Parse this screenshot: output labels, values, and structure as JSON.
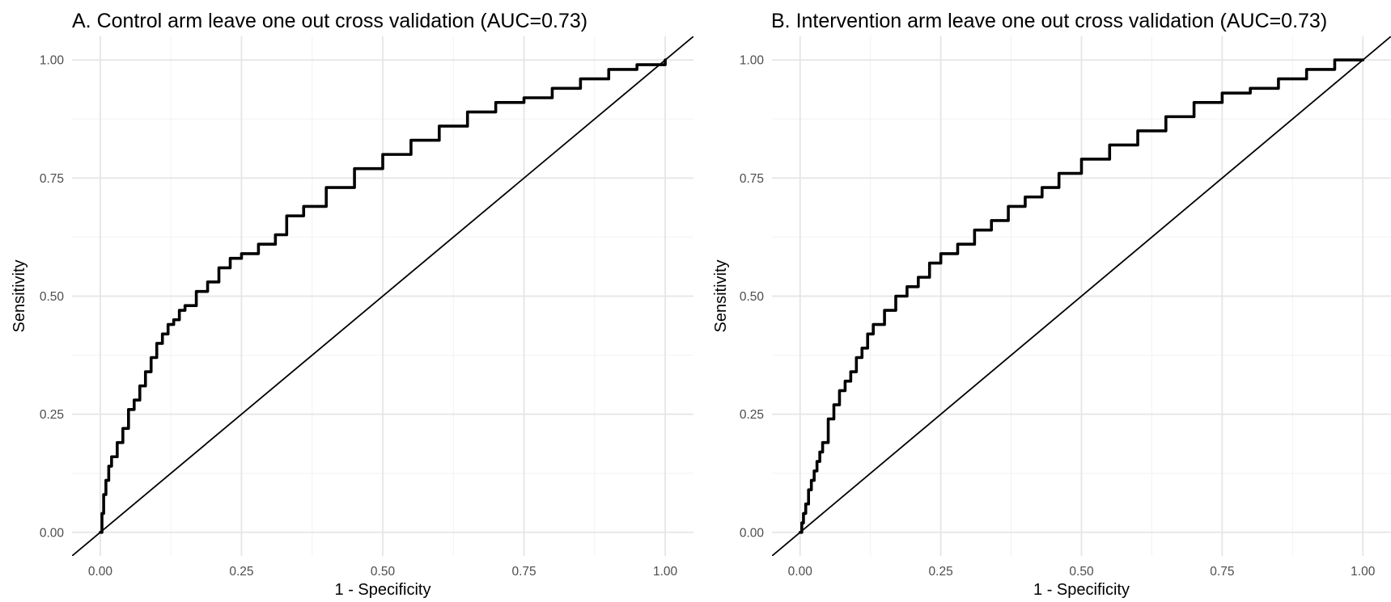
{
  "chart_data": [
    {
      "type": "line",
      "title": "A. Control arm leave one out cross validation (AUC=0.73)",
      "xlabel": "1 - Specificity",
      "ylabel": "Sensitivity",
      "xlim": [
        -0.05,
        1.05
      ],
      "ylim": [
        -0.05,
        1.05
      ],
      "x_ticks": [
        0,
        0.25,
        0.5,
        0.75,
        1
      ],
      "x_tick_labels": [
        "0.00",
        "0.25",
        "0.50",
        "0.75",
        "1.00"
      ],
      "y_ticks": [
        0,
        0.25,
        0.5,
        0.75,
        1
      ],
      "y_tick_labels": [
        "0.00",
        "0.25",
        "0.50",
        "0.75",
        "1.00"
      ],
      "grid": true,
      "series": [
        {
          "x": [
            0,
            0.003,
            0.006,
            0.01,
            0.015,
            0.02,
            0.03,
            0.04,
            0.05,
            0.06,
            0.07,
            0.08,
            0.09,
            0.1,
            0.11,
            0.12,
            0.13,
            0.14,
            0.15,
            0.17,
            0.19,
            0.21,
            0.23,
            0.25,
            0.28,
            0.31,
            0.33,
            0.36,
            0.4,
            0.45,
            0.5,
            0.55,
            0.6,
            0.65,
            0.7,
            0.75,
            0.8,
            0.85,
            0.9,
            0.95,
            1
          ],
          "y": [
            0,
            0.04,
            0.08,
            0.11,
            0.14,
            0.16,
            0.19,
            0.22,
            0.26,
            0.28,
            0.31,
            0.34,
            0.37,
            0.4,
            0.42,
            0.44,
            0.45,
            0.47,
            0.48,
            0.51,
            0.53,
            0.56,
            0.58,
            0.59,
            0.61,
            0.63,
            0.67,
            0.69,
            0.73,
            0.77,
            0.8,
            0.83,
            0.86,
            0.89,
            0.91,
            0.92,
            0.94,
            0.96,
            0.98,
            0.99,
            1
          ],
          "color": "#000000",
          "width": "thick"
        },
        {
          "x": [
            -0.05,
            1.05
          ],
          "y": [
            -0.05,
            1.05
          ],
          "color": "#000000",
          "width": "thin"
        }
      ]
    },
    {
      "type": "line",
      "title": "B. Intervention arm leave one out cross validation (AUC=0.73)",
      "xlabel": "1 - Specificity",
      "ylabel": "Sensitivity",
      "xlim": [
        -0.05,
        1.05
      ],
      "ylim": [
        -0.05,
        1.05
      ],
      "x_ticks": [
        0,
        0.25,
        0.5,
        0.75,
        1
      ],
      "x_tick_labels": [
        "0.00",
        "0.25",
        "0.50",
        "0.75",
        "1.00"
      ],
      "y_ticks": [
        0,
        0.25,
        0.5,
        0.75,
        1
      ],
      "y_tick_labels": [
        "0.00",
        "0.25",
        "0.50",
        "0.75",
        "1.00"
      ],
      "grid": true,
      "series": [
        {
          "x": [
            0,
            0.003,
            0.006,
            0.01,
            0.015,
            0.02,
            0.025,
            0.03,
            0.035,
            0.04,
            0.05,
            0.06,
            0.07,
            0.08,
            0.09,
            0.1,
            0.11,
            0.12,
            0.13,
            0.15,
            0.17,
            0.19,
            0.21,
            0.23,
            0.25,
            0.28,
            0.31,
            0.34,
            0.37,
            0.4,
            0.43,
            0.46,
            0.5,
            0.55,
            0.6,
            0.65,
            0.7,
            0.75,
            0.8,
            0.85,
            0.9,
            0.95,
            1
          ],
          "y": [
            0,
            0.02,
            0.04,
            0.06,
            0.09,
            0.11,
            0.13,
            0.15,
            0.17,
            0.19,
            0.24,
            0.27,
            0.3,
            0.32,
            0.34,
            0.37,
            0.39,
            0.42,
            0.44,
            0.47,
            0.5,
            0.52,
            0.54,
            0.57,
            0.59,
            0.61,
            0.64,
            0.66,
            0.69,
            0.71,
            0.73,
            0.76,
            0.79,
            0.82,
            0.85,
            0.88,
            0.91,
            0.93,
            0.94,
            0.96,
            0.98,
            1,
            1
          ],
          "color": "#000000",
          "width": "thick"
        },
        {
          "x": [
            -0.05,
            1.05
          ],
          "y": [
            -0.05,
            1.05
          ],
          "color": "#000000",
          "width": "thin"
        }
      ]
    }
  ]
}
